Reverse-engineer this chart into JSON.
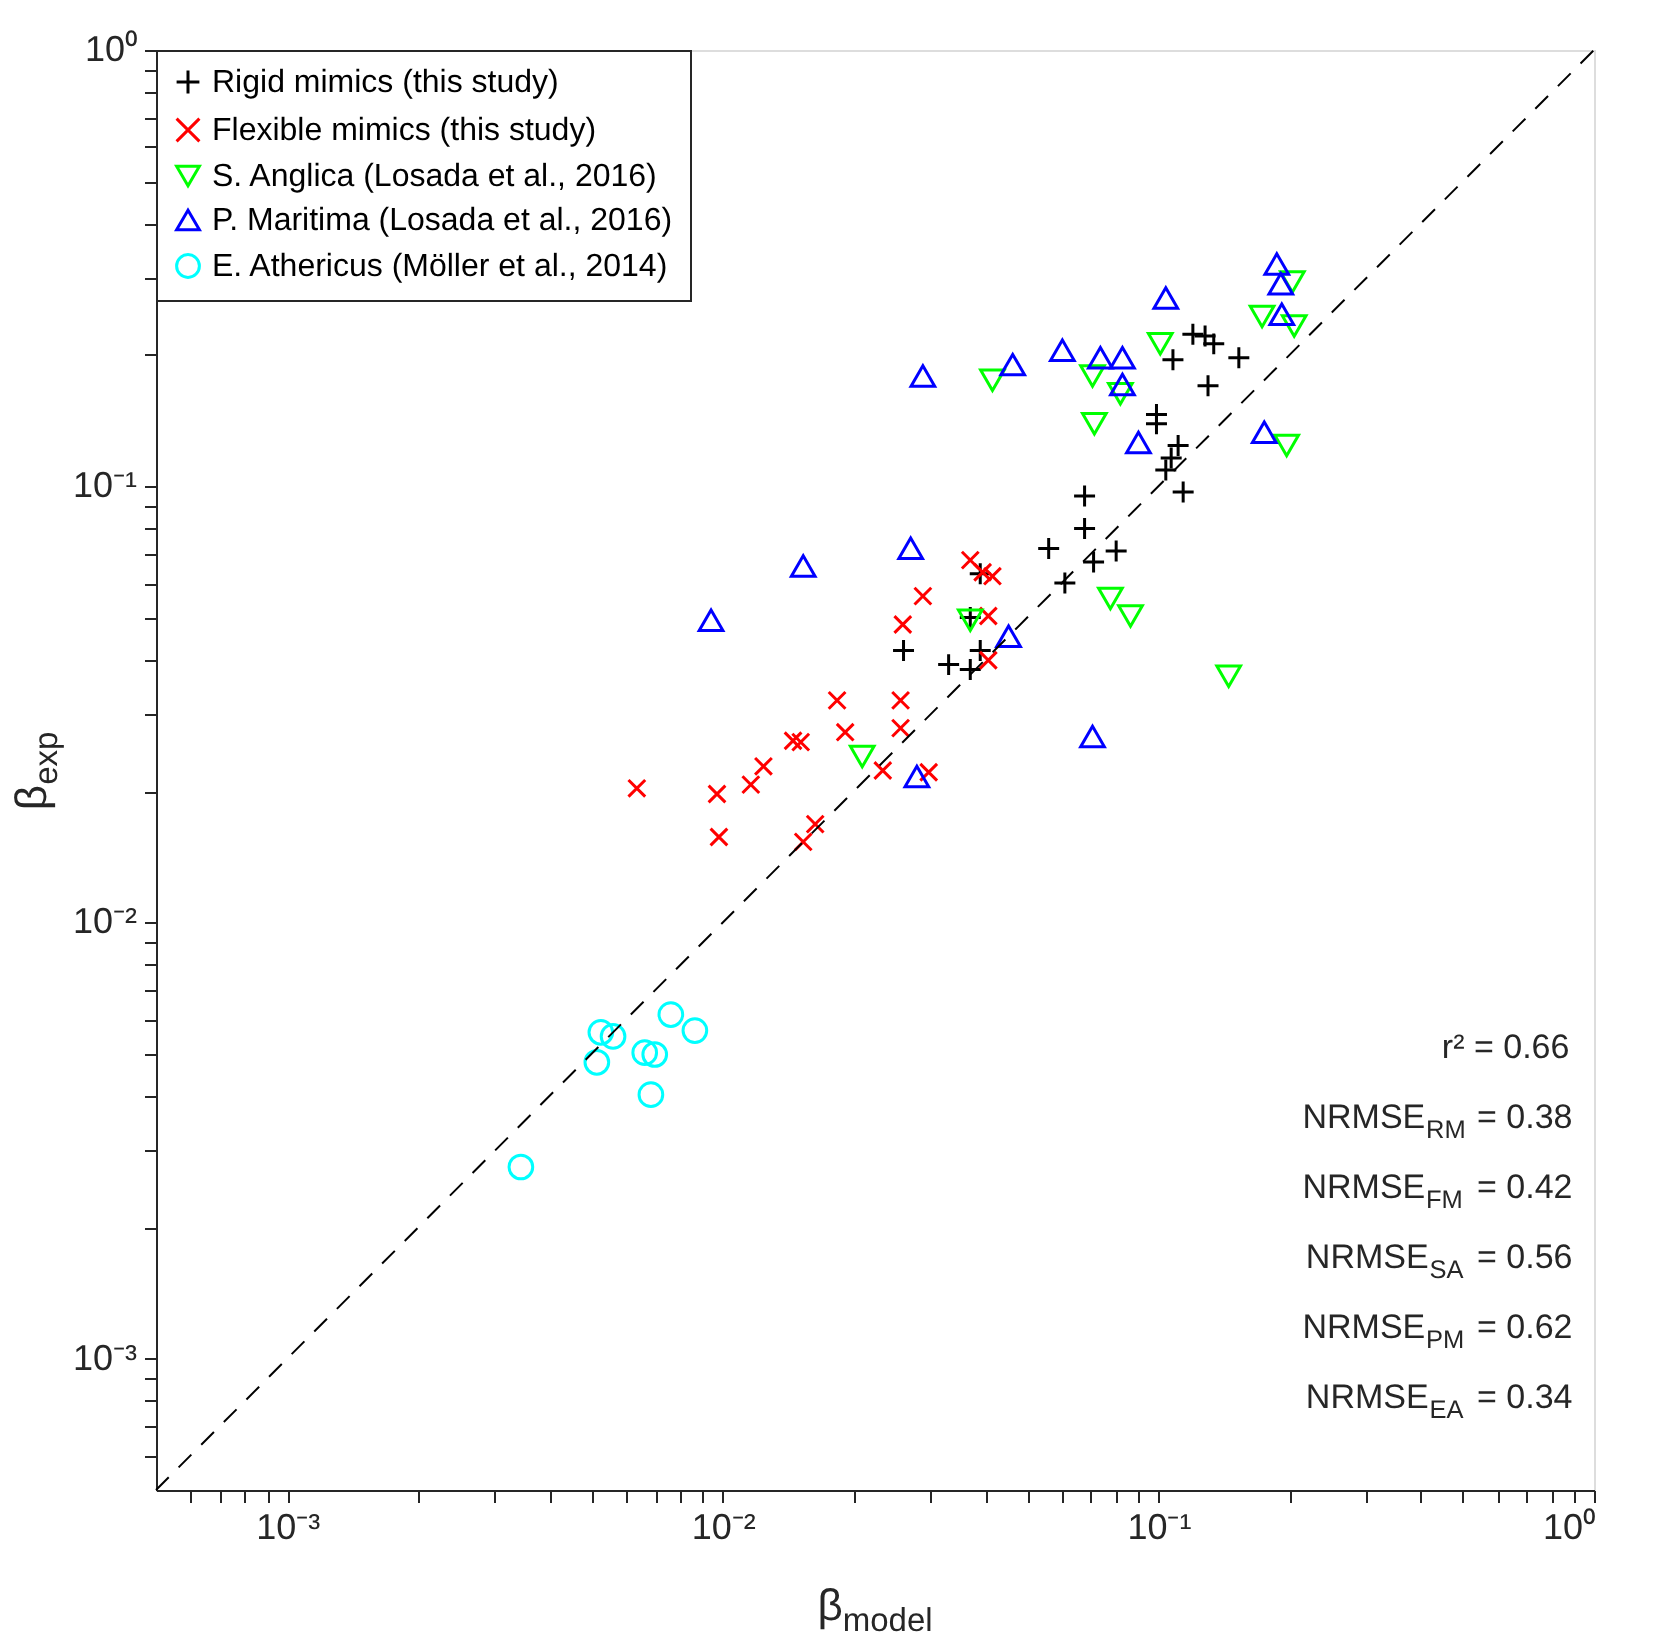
{
  "chart_data": {
    "type": "scatter",
    "xlabel": "β$_{model}$",
    "ylabel": "β$_{exp}$",
    "log": "xy",
    "grid": false,
    "legend": "top left",
    "xlim": [
      0.0005,
      1
    ],
    "ylim": [
      0.0005,
      1
    ],
    "xticks": [
      {
        "value": 0.0006,
        "label": null
      },
      {
        "value": 0.0007,
        "label": null
      },
      {
        "value": 0.0008,
        "label": null
      },
      {
        "value": 0.0009,
        "label": null
      },
      {
        "value": 0.001,
        "label": "10⁻³"
      },
      {
        "value": 0.002,
        "label": null
      },
      {
        "value": 0.003,
        "label": null
      },
      {
        "value": 0.004,
        "label": null
      },
      {
        "value": 0.005,
        "label": null
      },
      {
        "value": 0.006,
        "label": null
      },
      {
        "value": 0.007,
        "label": null
      },
      {
        "value": 0.008,
        "label": null
      },
      {
        "value": 0.009,
        "label": null
      },
      {
        "value": 0.01,
        "label": "10⁻²"
      },
      {
        "value": 0.02,
        "label": null
      },
      {
        "value": 0.03,
        "label": null
      },
      {
        "value": 0.04,
        "label": null
      },
      {
        "value": 0.05,
        "label": null
      },
      {
        "value": 0.06,
        "label": null
      },
      {
        "value": 0.07,
        "label": null
      },
      {
        "value": 0.08,
        "label": null
      },
      {
        "value": 0.09,
        "label": null
      },
      {
        "value": 0.1,
        "label": "10⁻¹"
      },
      {
        "value": 0.2,
        "label": null
      },
      {
        "value": 0.3,
        "label": null
      },
      {
        "value": 0.4,
        "label": null
      },
      {
        "value": 0.5,
        "label": null
      },
      {
        "value": 0.6,
        "label": null
      },
      {
        "value": 0.7,
        "label": null
      },
      {
        "value": 0.8,
        "label": null
      },
      {
        "value": 0.9,
        "label": null
      },
      {
        "value": 1,
        "label": "10⁰"
      }
    ],
    "yticks": [
      {
        "value": 0.0006,
        "label": null
      },
      {
        "value": 0.0007,
        "label": null
      },
      {
        "value": 0.0008,
        "label": null
      },
      {
        "value": 0.0009,
        "label": null
      },
      {
        "value": 0.001,
        "label": "10⁻³"
      },
      {
        "value": 0.002,
        "label": null
      },
      {
        "value": 0.003,
        "label": null
      },
      {
        "value": 0.004,
        "label": null
      },
      {
        "value": 0.005,
        "label": null
      },
      {
        "value": 0.006,
        "label": null
      },
      {
        "value": 0.007,
        "label": null
      },
      {
        "value": 0.008,
        "label": null
      },
      {
        "value": 0.009,
        "label": null
      },
      {
        "value": 0.01,
        "label": "10⁻²"
      },
      {
        "value": 0.02,
        "label": null
      },
      {
        "value": 0.03,
        "label": null
      },
      {
        "value": 0.04,
        "label": null
      },
      {
        "value": 0.05,
        "label": null
      },
      {
        "value": 0.06,
        "label": null
      },
      {
        "value": 0.07,
        "label": null
      },
      {
        "value": 0.08,
        "label": null
      },
      {
        "value": 0.09,
        "label": null
      },
      {
        "value": 0.1,
        "label": "10⁻¹"
      },
      {
        "value": 0.2,
        "label": null
      },
      {
        "value": 0.3,
        "label": null
      },
      {
        "value": 0.4,
        "label": null
      },
      {
        "value": 0.5,
        "label": null
      },
      {
        "value": 0.6,
        "label": null
      },
      {
        "value": 0.7,
        "label": null
      },
      {
        "value": 0.8,
        "label": null
      },
      {
        "value": 0.9,
        "label": null
      },
      {
        "value": 1,
        "label": "10⁰"
      }
    ],
    "series": [
      {
        "name": "Rigid mimics (this study)",
        "color": "#000000",
        "marker": "plus",
        "x": [
          0.12,
          0.128,
          0.134,
          0.108,
          0.153,
          0.13,
          0.099,
          0.099,
          0.111,
          0.107,
          0.104,
          0.114,
          0.0677,
          0.0677,
          0.056,
          0.08,
          0.071,
          0.061,
          0.039,
          0.037,
          0.026,
          0.033,
          0.037,
          0.039
        ],
        "values": [
          0.223,
          0.221,
          0.212,
          0.195,
          0.197,
          0.17,
          0.146,
          0.139,
          0.124,
          0.116,
          0.109,
          0.097,
          0.095,
          0.08,
          0.072,
          0.071,
          0.067,
          0.06,
          0.063,
          0.05,
          0.042,
          0.039,
          0.038,
          0.042
        ]
      },
      {
        "name": "Flexible mimics (this study)",
        "color": "#ff0000",
        "marker": "cross",
        "x": [
          0.037,
          0.0395,
          0.0416,
          0.0288,
          0.0259,
          0.0407,
          0.0407,
          0.0183,
          0.0256,
          0.0191,
          0.0256,
          0.0145,
          0.0151,
          0.0124,
          0.0116,
          0.00635,
          0.0097,
          0.0233,
          0.0297,
          0.0098,
          0.0163,
          0.0153
        ],
        "values": [
          0.0677,
          0.0635,
          0.0622,
          0.056,
          0.0482,
          0.0504,
          0.0399,
          0.0323,
          0.0323,
          0.0273,
          0.0279,
          0.0261,
          0.0259,
          0.0228,
          0.0207,
          0.0203,
          0.0197,
          0.0223,
          0.0221,
          0.0157,
          0.0168,
          0.0153
        ]
      },
      {
        "name": "S. Anglica (Losada et al., 2016)",
        "color": "#00ff00",
        "marker": "triangle-down",
        "x": [
          0.203,
          0.173,
          0.205,
          0.101,
          0.0416,
          0.0706,
          0.0818,
          0.0713,
          0.197,
          0.0776,
          0.0863,
          0.037,
          0.145,
          0.0209
        ],
        "values": [
          0.294,
          0.245,
          0.233,
          0.212,
          0.175,
          0.179,
          0.163,
          0.139,
          0.124,
          0.0553,
          0.0504,
          0.0493,
          0.0367,
          0.024
        ]
      },
      {
        "name": "P. Maritima (Losada et al., 2016)",
        "color": "#0000ff",
        "marker": "triangle",
        "x": [
          0.187,
          0.191,
          0.192,
          0.104,
          0.0602,
          0.0736,
          0.0827,
          0.0827,
          0.0463,
          0.0288,
          0.09,
          0.175,
          0.027,
          0.0153,
          0.0453,
          0.0094,
          0.0279,
          0.0706
        ],
        "values": [
          0.323,
          0.291,
          0.248,
          0.27,
          0.205,
          0.197,
          0.197,
          0.171,
          0.19,
          0.179,
          0.126,
          0.133,
          0.0721,
          0.0656,
          0.0453,
          0.0493,
          0.0216,
          0.0267
        ]
      },
      {
        "name": "E. Athericus (Möller et al., 2014)",
        "color": "#00ffff",
        "marker": "circle",
        "x": [
          0.00525,
          0.0056,
          0.00514,
          0.0076,
          0.00863,
          0.00662,
          0.00698,
          0.00684,
          0.00344
        ],
        "values": [
          0.0056,
          0.00548,
          0.00478,
          0.00615,
          0.00565,
          0.00503,
          0.00498,
          0.00403,
          0.00275
        ]
      },
      {
        "type": "line",
        "color": "#000000",
        "line_style": "dashed",
        "marker": "none",
        "x": [
          0.0005,
          1
        ],
        "values": [
          0.0005,
          1
        ]
      }
    ],
    "annotations": [
      "r² = 0.66",
      "NRMSE$_{RM}$ = 0.38",
      "NRMSE$_{FM}$ = 0.42",
      "NRMSE$_{SA}$ = 0.56",
      "NRMSE$_{PM}$ = 0.62",
      "NRMSE$_{EA}$ = 0.34"
    ]
  }
}
